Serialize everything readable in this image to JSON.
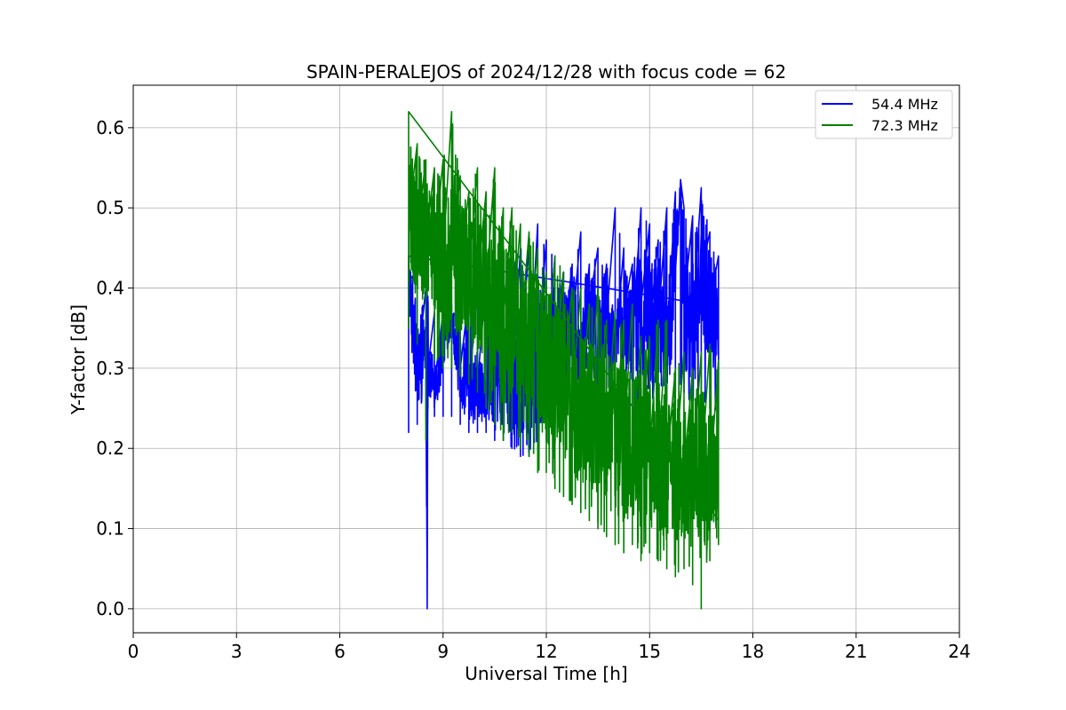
{
  "chart_data": {
    "type": "line",
    "title": "SPAIN-PERALEJOS of 2024/12/28 with focus code = 62",
    "xlabel": "Universal Time [h]",
    "ylabel": "Y-factor [dB]",
    "xlim": [
      0,
      24
    ],
    "ylim": [
      -0.03,
      0.653
    ],
    "x_ticks": [
      0,
      3,
      6,
      9,
      12,
      15,
      18,
      21,
      24
    ],
    "y_ticks": [
      0.0,
      0.1,
      0.2,
      0.3,
      0.4,
      0.5,
      0.6
    ],
    "x_tick_labels": [
      "0",
      "3",
      "6",
      "9",
      "12",
      "15",
      "18",
      "21",
      "24"
    ],
    "y_tick_labels": [
      "0.0",
      "0.1",
      "0.2",
      "0.3",
      "0.4",
      "0.5",
      "0.6"
    ],
    "grid": true,
    "legend_position": "top-right",
    "series": [
      {
        "name": "54.4 MHz",
        "color": "#0000ff",
        "x": [
          8.0,
          8.25,
          8.5,
          8.54,
          8.55,
          8.56,
          8.75,
          9.0,
          9.25,
          9.5,
          9.75,
          10.0,
          10.25,
          10.5,
          10.75,
          11.0,
          11.25,
          11.5,
          11.75,
          12.0,
          12.25,
          12.5,
          12.75,
          13.0,
          13.25,
          13.5,
          13.75,
          14.0,
          14.25,
          14.5,
          14.75,
          15.0,
          15.25,
          15.5,
          15.75,
          15.9,
          16.0,
          16.25,
          16.5,
          16.75,
          17.0
        ],
        "y": [
          0.41,
          0.3,
          0.34,
          0.0,
          0.21,
          0.3,
          0.28,
          0.33,
          0.36,
          0.3,
          0.27,
          0.28,
          0.26,
          0.3,
          0.28,
          0.27,
          0.3,
          0.29,
          0.32,
          0.3,
          0.34,
          0.33,
          0.35,
          0.31,
          0.38,
          0.33,
          0.36,
          0.32,
          0.37,
          0.34,
          0.38,
          0.35,
          0.36,
          0.33,
          0.42,
          0.535,
          0.38,
          0.36,
          0.42,
          0.38,
          0.35
        ],
        "max": [
          0.44,
          0.42,
          0.4,
          0.4,
          0.39,
          0.39,
          0.37,
          0.37,
          0.38,
          0.38,
          0.39,
          0.4,
          0.41,
          0.42,
          0.43,
          0.44,
          0.45,
          0.46,
          0.48,
          0.46,
          0.44,
          0.42,
          0.43,
          0.47,
          0.43,
          0.45,
          0.43,
          0.5,
          0.45,
          0.43,
          0.5,
          0.48,
          0.46,
          0.5,
          0.52,
          0.53,
          0.5,
          0.49,
          0.525,
          0.47,
          0.44
        ],
        "min": [
          0.22,
          0.23,
          0.24,
          0.0,
          0.2,
          0.25,
          0.24,
          0.24,
          0.24,
          0.23,
          0.22,
          0.22,
          0.22,
          0.21,
          0.21,
          0.2,
          0.19,
          0.19,
          0.2,
          0.21,
          0.22,
          0.23,
          0.24,
          0.25,
          0.25,
          0.26,
          0.26,
          0.27,
          0.25,
          0.25,
          0.24,
          0.24,
          0.25,
          0.26,
          0.27,
          0.28,
          0.27,
          0.25,
          0.26,
          0.25,
          0.23
        ]
      },
      {
        "name": "72.3 MHz",
        "color": "#008000",
        "x": [
          8.0,
          8.25,
          8.5,
          8.75,
          9.0,
          9.25,
          9.5,
          9.75,
          10.0,
          10.25,
          10.5,
          10.75,
          11.0,
          11.25,
          11.5,
          11.75,
          12.0,
          12.25,
          12.5,
          12.75,
          13.0,
          13.25,
          13.5,
          13.75,
          14.0,
          14.25,
          14.5,
          14.75,
          15.0,
          15.25,
          15.5,
          15.75,
          16.0,
          16.25,
          16.5,
          16.75,
          17.0
        ],
        "y": [
          0.49,
          0.47,
          0.46,
          0.45,
          0.44,
          0.44,
          0.43,
          0.42,
          0.41,
          0.4,
          0.38,
          0.36,
          0.35,
          0.34,
          0.33,
          0.31,
          0.3,
          0.29,
          0.28,
          0.26,
          0.25,
          0.24,
          0.23,
          0.23,
          0.22,
          0.21,
          0.2,
          0.2,
          0.19,
          0.19,
          0.18,
          0.18,
          0.17,
          0.17,
          0.17,
          0.16,
          0.18
        ],
        "max": [
          0.62,
          0.58,
          0.56,
          0.55,
          0.56,
          0.62,
          0.54,
          0.52,
          0.55,
          0.52,
          0.55,
          0.5,
          0.5,
          0.48,
          0.47,
          0.45,
          0.42,
          0.44,
          0.42,
          0.4,
          0.4,
          0.38,
          0.4,
          0.36,
          0.37,
          0.36,
          0.38,
          0.34,
          0.34,
          0.36,
          0.36,
          0.3,
          0.32,
          0.3,
          0.32,
          0.33,
          0.31
        ],
        "min": [
          0.35,
          0.33,
          0.21,
          0.31,
          0.3,
          0.3,
          0.29,
          0.28,
          0.27,
          0.25,
          0.23,
          0.21,
          0.22,
          0.2,
          0.19,
          0.17,
          0.17,
          0.15,
          0.14,
          0.13,
          0.12,
          0.11,
          0.1,
          0.09,
          0.08,
          0.07,
          0.08,
          0.06,
          0.07,
          0.06,
          0.05,
          0.04,
          0.05,
          0.03,
          0.0,
          0.06,
          0.08
        ]
      }
    ]
  }
}
